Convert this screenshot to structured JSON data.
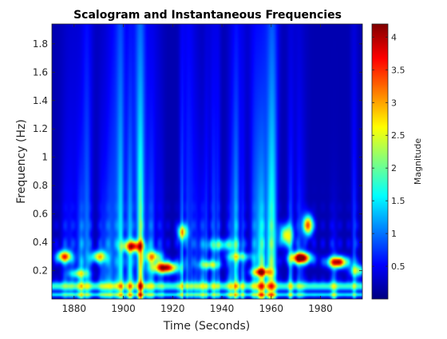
{
  "chart_data": {
    "type": "heatmap",
    "title": "Scalogram and Instantaneous Frequencies",
    "xlabel": "Time (Seconds)",
    "ylabel": "Frequency (Hz)",
    "xlim": [
      1871,
      1997
    ],
    "ylim": [
      0.0,
      1.94
    ],
    "x_ticks": [
      1880,
      1900,
      1920,
      1940,
      1960,
      1980
    ],
    "y_ticks": [
      0.2,
      0.4,
      0.6,
      0.8,
      1.0,
      1.2,
      1.4,
      1.6,
      1.8
    ],
    "y_tick_labels": [
      "0.2",
      "0.4",
      "0.6",
      "0.8",
      "1",
      "1.2",
      "1.4",
      "1.6",
      "1.8"
    ],
    "colormap": "jet",
    "colorbar": {
      "label": "Magnitude",
      "range": [
        0.0,
        4.2
      ],
      "ticks": [
        0.5,
        1,
        1.5,
        2,
        2.5,
        3,
        3.5,
        4
      ],
      "tick_labels": [
        "0.5",
        "1",
        "1.5",
        "2",
        "2.5",
        "3",
        "3.5",
        "4"
      ]
    },
    "background_magnitude": 0.2,
    "features": [
      {
        "kind": "band",
        "f": 0.09,
        "fw": 0.03,
        "amp": 1.6,
        "note": "low-frequency ridge across all time"
      },
      {
        "kind": "band",
        "f": 0.03,
        "fw": 0.015,
        "amp": 1.3
      },
      {
        "kind": "blob",
        "t": 1876,
        "f": 0.3,
        "tw": 3.0,
        "fw": 0.04,
        "amp": 3.0
      },
      {
        "kind": "blob",
        "t": 1890,
        "f": 0.3,
        "tw": 3.0,
        "fw": 0.04,
        "amp": 2.4
      },
      {
        "kind": "blob",
        "t": 1904,
        "f": 0.37,
        "tw": 4.0,
        "fw": 0.04,
        "amp": 2.9
      },
      {
        "kind": "blob",
        "t": 1917,
        "f": 0.22,
        "tw": 5.0,
        "fw": 0.04,
        "amp": 3.9
      },
      {
        "kind": "blob",
        "t": 1912,
        "f": 0.3,
        "tw": 3.5,
        "fw": 0.04,
        "amp": 2.2
      },
      {
        "kind": "blob",
        "t": 1924,
        "f": 0.47,
        "tw": 2.0,
        "fw": 0.05,
        "amp": 2.2
      },
      {
        "kind": "blob",
        "t": 1935,
        "f": 0.24,
        "tw": 4.0,
        "fw": 0.03,
        "amp": 1.7
      },
      {
        "kind": "blob",
        "t": 1956,
        "f": 0.19,
        "tw": 4.0,
        "fw": 0.03,
        "amp": 2.6
      },
      {
        "kind": "blob",
        "t": 1966,
        "f": 0.45,
        "tw": 2.5,
        "fw": 0.07,
        "amp": 2.4
      },
      {
        "kind": "blob",
        "t": 1972,
        "f": 0.29,
        "tw": 4.0,
        "fw": 0.04,
        "amp": 4.2
      },
      {
        "kind": "blob",
        "t": 1975,
        "f": 0.52,
        "tw": 2.0,
        "fw": 0.07,
        "amp": 3.1
      },
      {
        "kind": "blob",
        "t": 1987,
        "f": 0.26,
        "tw": 4.0,
        "fw": 0.04,
        "amp": 3.6
      },
      {
        "kind": "blob",
        "t": 1882,
        "f": 0.18,
        "tw": 4.0,
        "fw": 0.03,
        "amp": 1.6
      },
      {
        "kind": "blob",
        "t": 1940,
        "f": 0.38,
        "tw": 6.0,
        "fw": 0.04,
        "amp": 1.3
      },
      {
        "kind": "blob",
        "t": 1995,
        "f": 0.2,
        "tw": 3.0,
        "fw": 0.04,
        "amp": 2.0
      },
      {
        "kind": "blob",
        "t": 1947,
        "f": 0.3,
        "tw": 5.0,
        "fw": 0.03,
        "amp": 1.4
      }
    ]
  }
}
